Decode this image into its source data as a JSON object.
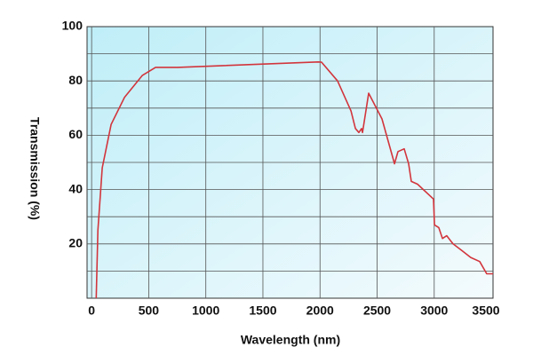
{
  "chart_data": {
    "type": "line",
    "x_label": "Wavelength (nm)",
    "y_label": "Transmission  (%)",
    "xlim": [
      -40,
      3515
    ],
    "ylim": [
      0,
      100
    ],
    "xticks": [
      0,
      500,
      1000,
      1500,
      2000,
      2500,
      3000,
      3500
    ],
    "yticks": [
      20,
      40,
      60,
      80,
      100
    ],
    "ygrid": [
      10,
      20,
      30,
      40,
      50,
      60,
      70,
      80,
      90
    ],
    "grid": true,
    "series": [
      {
        "name": "Transmission",
        "color": "#d2353c",
        "x": [
          40,
          55,
          93,
          171,
          288,
          443,
          560,
          638,
          754,
          1983,
          2014,
          2154,
          2271,
          2310,
          2340,
          2364,
          2372,
          2426,
          2543,
          2652,
          2683,
          2737,
          2776,
          2799,
          2854,
          2994,
          3002,
          3040,
          3072,
          3110,
          3165,
          3243,
          3320,
          3398,
          3460,
          3515
        ],
        "values": [
          0,
          25,
          48,
          64,
          74,
          82,
          85,
          85,
          85,
          87,
          86.9,
          80,
          69,
          62.5,
          61,
          62.5,
          61,
          75.5,
          66,
          49.5,
          54,
          55,
          49.5,
          43,
          42,
          36.5,
          27,
          26,
          22,
          23,
          20,
          17.5,
          15,
          13.5,
          9,
          9
        ]
      }
    ]
  }
}
